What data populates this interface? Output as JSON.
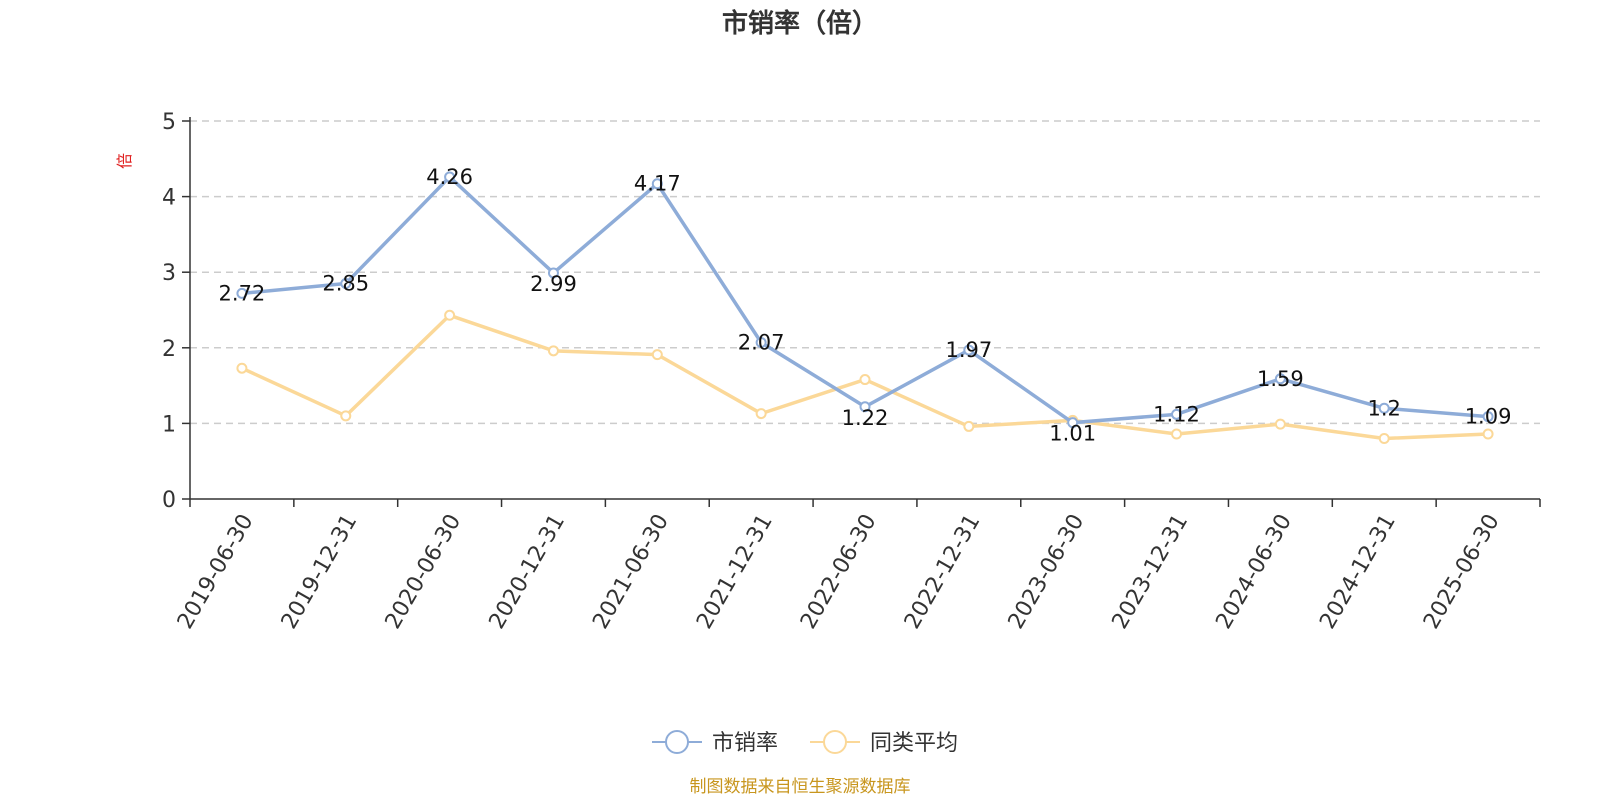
{
  "chart_data": {
    "type": "line",
    "title": "市销率（倍）",
    "y_unit_label": "倍",
    "categories": [
      "2019-06-30",
      "2019-12-31",
      "2020-06-30",
      "2020-12-31",
      "2021-06-30",
      "2021-12-31",
      "2022-06-30",
      "2022-12-31",
      "2023-06-30",
      "2023-12-31",
      "2024-06-30",
      "2024-12-31",
      "2025-06-30"
    ],
    "ylim": [
      0,
      5
    ],
    "yticks": [
      "0",
      "1",
      "2",
      "3",
      "4",
      "5"
    ],
    "grid": true,
    "legend_position": "bottom-center",
    "series": [
      {
        "name": "市销率",
        "color": "#8eacd8",
        "values": [
          2.72,
          2.85,
          4.26,
          2.99,
          4.17,
          2.07,
          1.22,
          1.97,
          1.01,
          1.12,
          1.59,
          1.2,
          1.09
        ],
        "labels": [
          "2.72",
          "2.85",
          "4.26",
          "2.99",
          "4.17",
          "2.07",
          "1.22",
          "1.97",
          "1.01",
          "1.12",
          "1.59",
          "1.2",
          "1.09"
        ]
      },
      {
        "name": "同类平均",
        "color": "#fbd898",
        "values": [
          1.73,
          1.1,
          2.43,
          1.96,
          1.91,
          1.13,
          1.58,
          0.96,
          1.04,
          0.86,
          0.99,
          0.8,
          0.86
        ]
      }
    ]
  },
  "footer": {
    "source": "制图数据来自恒生聚源数据库"
  }
}
